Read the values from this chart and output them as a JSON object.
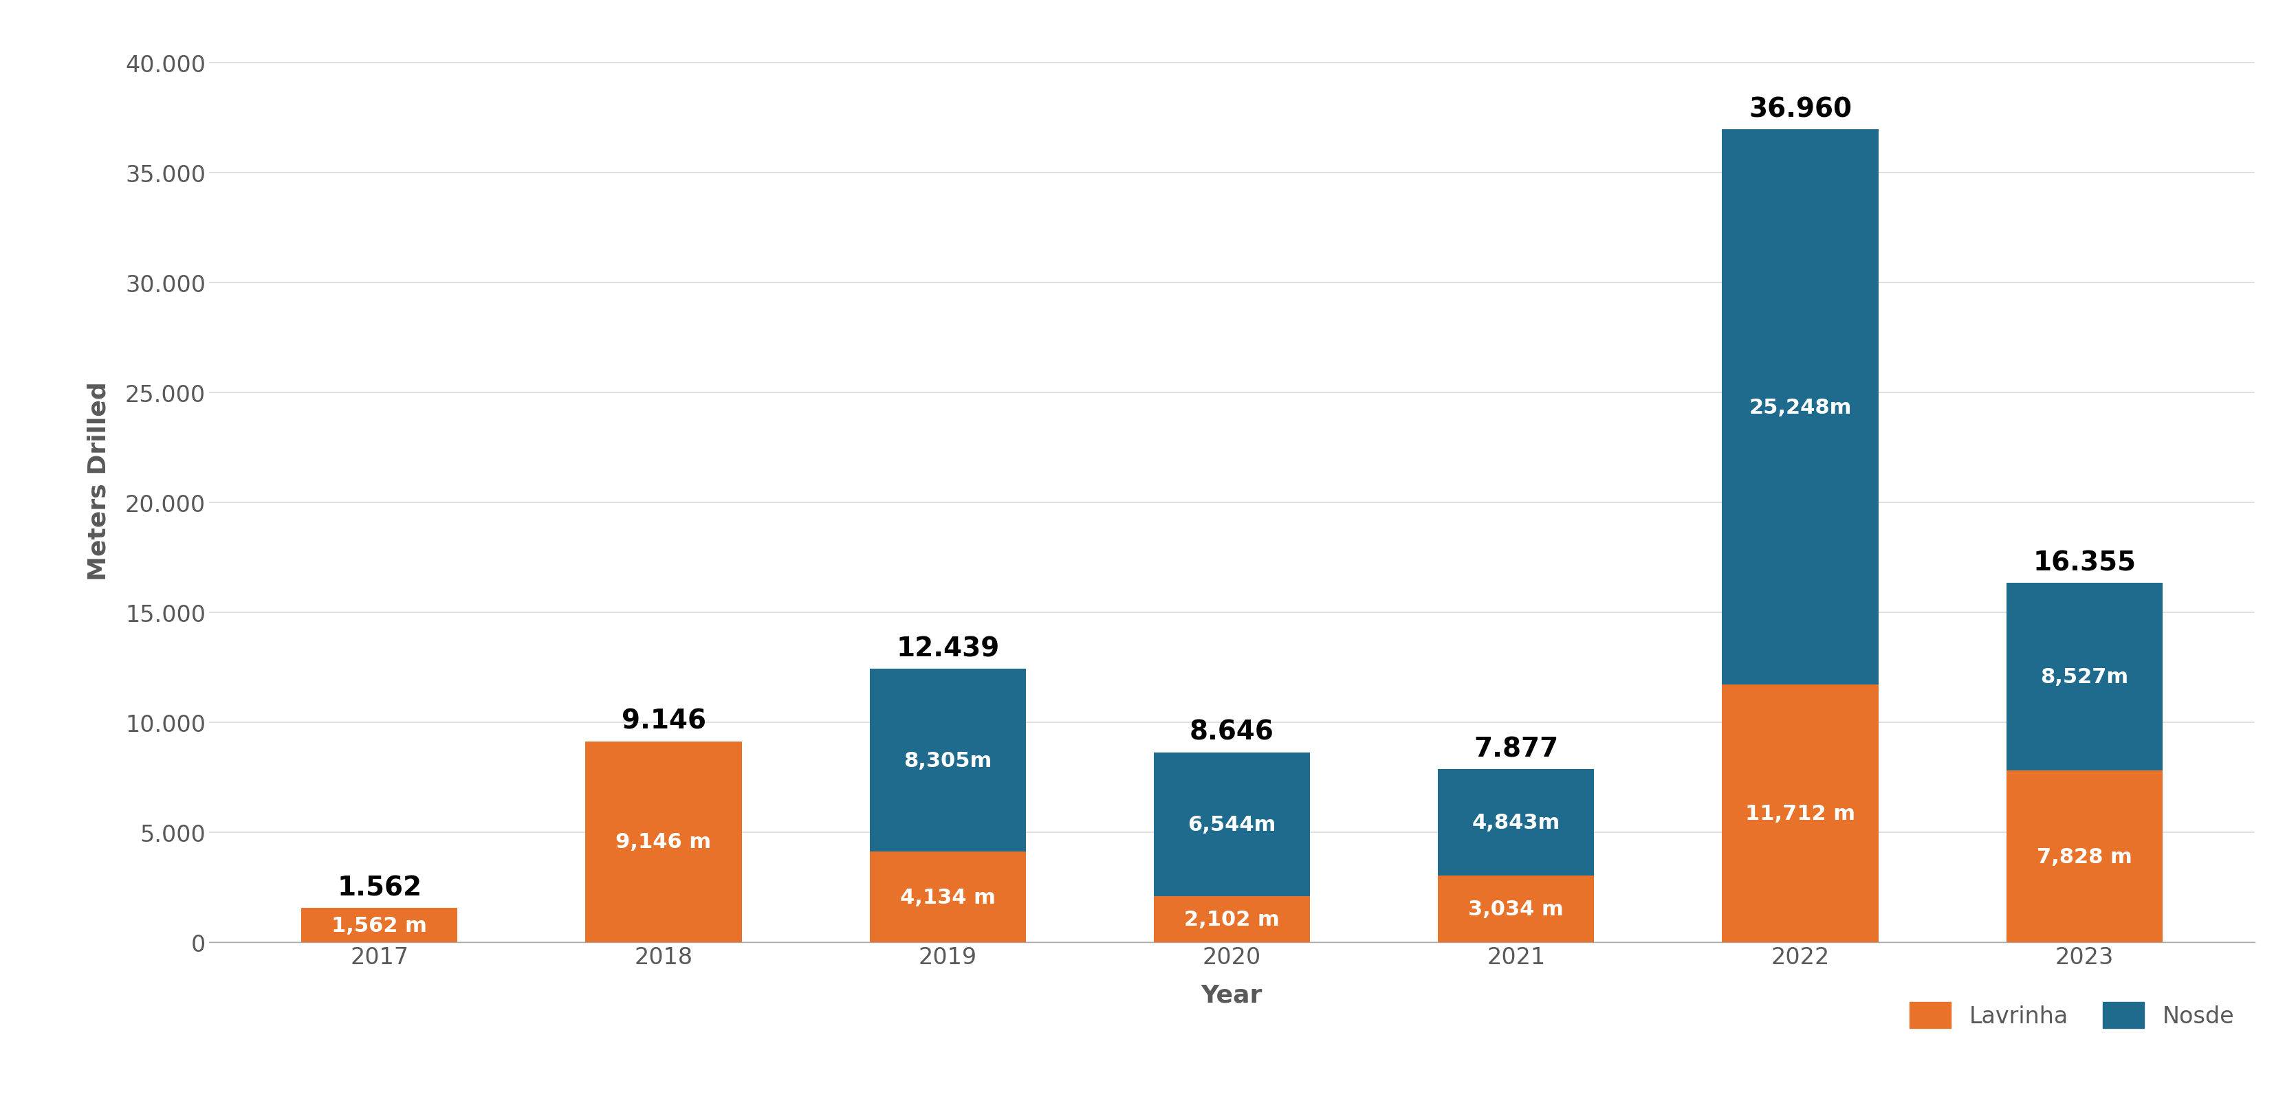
{
  "years": [
    "2017",
    "2018",
    "2019",
    "2020",
    "2021",
    "2022",
    "2023"
  ],
  "lavrinha": [
    1562,
    9146,
    4134,
    2102,
    3034,
    11712,
    7828
  ],
  "nosde": [
    0,
    0,
    8305,
    6544,
    4843,
    25248,
    8527
  ],
  "totals": [
    "1.562",
    "9.146",
    "12.439",
    "8.646",
    "7.877",
    "36.960",
    "16.355"
  ],
  "lavrinha_labels": [
    "1,562 m",
    "9,146 m",
    "4,134 m",
    "2,102 m",
    "3,034 m",
    "11,712 m",
    "7,828 m"
  ],
  "nosde_labels": [
    "",
    "",
    "8,305m",
    "6,544m",
    "4,843m",
    "25,248m",
    "8,527m"
  ],
  "lavrinha_color": "#E8722A",
  "nosde_color": "#1F6B8E",
  "background_color": "#FFFFFF",
  "ylabel": "Meters Drilled",
  "xlabel": "Year",
  "ylim_max": 42000,
  "ytick_values": [
    0,
    5000,
    10000,
    15000,
    20000,
    25000,
    30000,
    35000,
    40000
  ],
  "ytick_labels": [
    "0",
    "5.000",
    "10.000",
    "15.000",
    "20.000",
    "25.000",
    "30.000",
    "35.000",
    "40.000"
  ],
  "legend_lavrinha": "Lavrinha",
  "legend_nosde": "Nosde",
  "tick_color": "#595959",
  "grid_color": "#D9D9D9",
  "total_fontsize": 28,
  "label_fontsize": 22,
  "tick_fontsize": 24,
  "axis_label_fontsize": 26,
  "legend_fontsize": 24,
  "bar_width": 0.55
}
